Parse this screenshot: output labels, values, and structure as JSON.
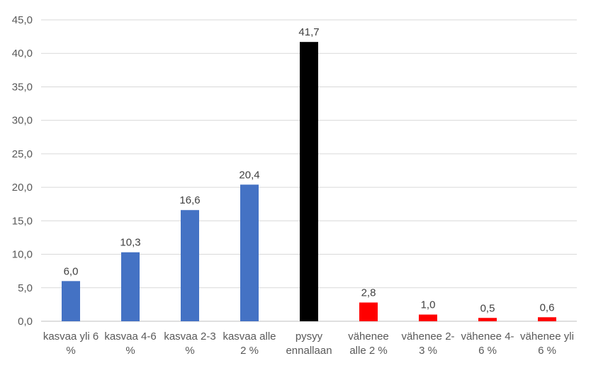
{
  "chart_data": {
    "type": "bar",
    "categories": [
      [
        "kasvaa yli 6",
        "%"
      ],
      [
        "kasvaa 4-6",
        "%"
      ],
      [
        "kasvaa 2-3",
        "%"
      ],
      [
        "kasvaa alle",
        "2 %"
      ],
      [
        "pysyy",
        "ennallaan"
      ],
      [
        "vähenee",
        "alle 2 %"
      ],
      [
        "vähenee 2-",
        "3 %"
      ],
      [
        "vähenee 4-",
        "6 %"
      ],
      [
        "vähenee yli",
        "6 %"
      ]
    ],
    "values": [
      6.0,
      10.3,
      16.6,
      20.4,
      41.7,
      2.8,
      1.0,
      0.5,
      0.6
    ],
    "data_labels": [
      "6,0",
      "10,3",
      "16,6",
      "20,4",
      "41,7",
      "2,8",
      "1,0",
      "0,5",
      "0,6"
    ],
    "colors": [
      "#4472C4",
      "#4472C4",
      "#4472C4",
      "#4472C4",
      "#000000",
      "#FF0000",
      "#FF0000",
      "#FF0000",
      "#FF0000"
    ],
    "ylim": [
      0,
      45
    ],
    "yticks": [
      0,
      5,
      10,
      15,
      20,
      25,
      30,
      35,
      40,
      45
    ],
    "ytick_labels": [
      "0,0",
      "5,0",
      "10,0",
      "15,0",
      "20,0",
      "25,0",
      "30,0",
      "35,0",
      "40,0",
      "45,0"
    ],
    "grid": true,
    "gridline_color": "#D9D9D9",
    "legend": "none",
    "title": "",
    "xlabel": "",
    "ylabel": ""
  }
}
